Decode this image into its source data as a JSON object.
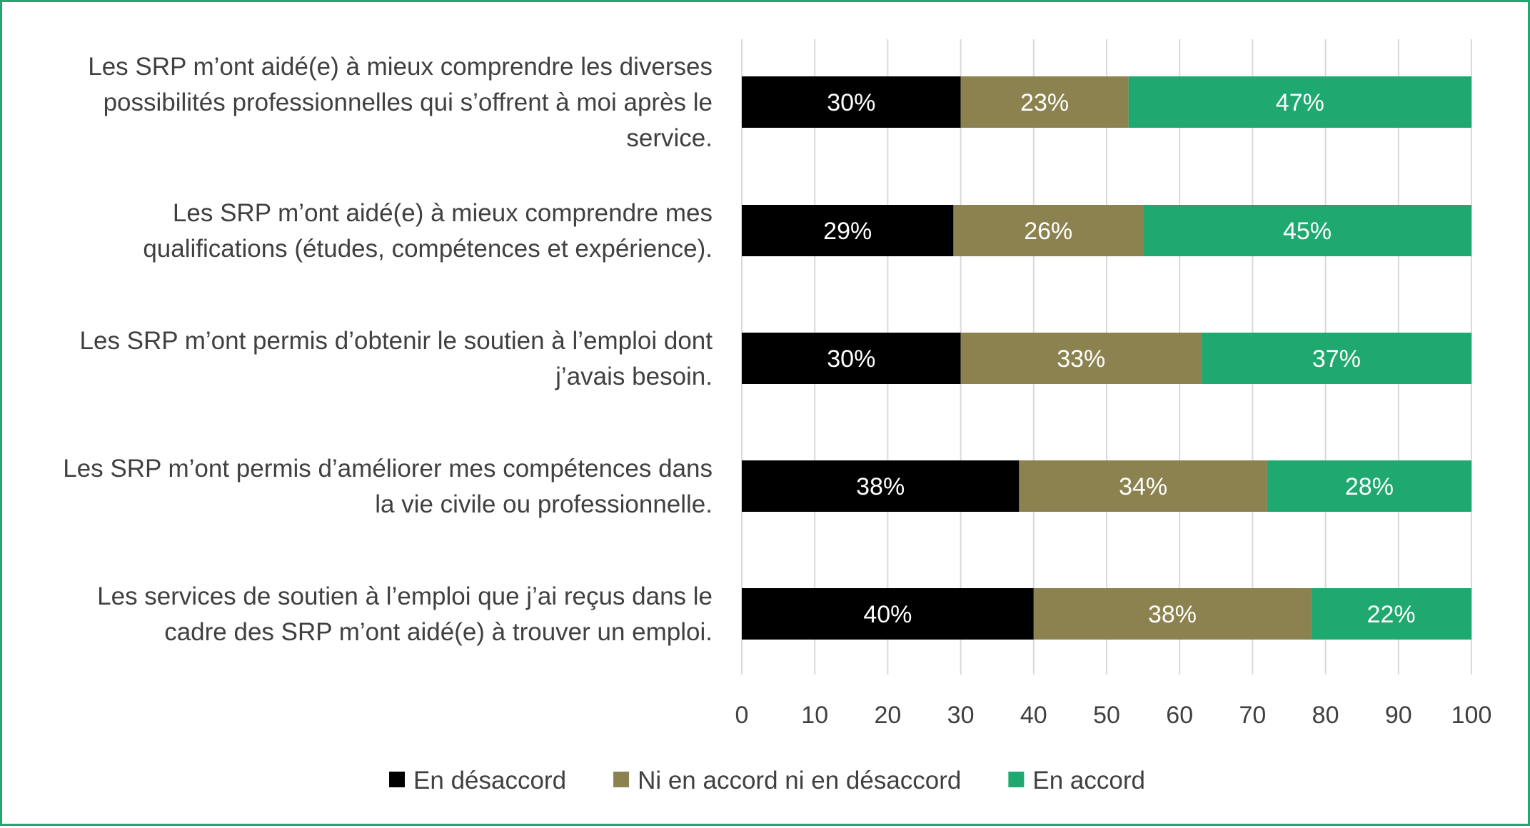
{
  "chart_data": {
    "type": "bar",
    "orientation": "horizontal",
    "stacked": true,
    "title": "",
    "xlabel": "",
    "ylabel": "",
    "xlim": [
      0,
      100
    ],
    "x_ticks": [
      "0",
      "10",
      "20",
      "30",
      "40",
      "50",
      "60",
      "70",
      "80",
      "90",
      "100"
    ],
    "grid": true,
    "legend_position": "bottom",
    "categories": [
      [
        "Les SRP m’ont aidé(e) à mieux comprendre les diverses",
        "possibilités professionnelles qui s’offrent à moi après le",
        "service."
      ],
      [
        "Les SRP m’ont aidé(e) à mieux comprendre mes",
        "qualifications (études, compétences et expérience)."
      ],
      [
        "Les SRP m’ont permis d’obtenir le soutien à l’emploi dont",
        "j’avais besoin."
      ],
      [
        "Les SRP m’ont permis d’améliorer mes compétences dans",
        "la vie civile ou professionnelle."
      ],
      [
        "Les services de soutien à l’emploi que j’ai reçus dans le",
        "cadre des SRP m’ont aidé(e) à trouver un emploi."
      ]
    ],
    "series": [
      {
        "name": "En désaccord",
        "color": "#000000",
        "values": [
          30,
          29,
          30,
          38,
          40
        ],
        "labels": [
          "30%",
          "29%",
          "30%",
          "38%",
          "40%"
        ]
      },
      {
        "name": "Ni en accord ni en désaccord",
        "color": "#8b8250",
        "values": [
          23,
          26,
          33,
          34,
          38
        ],
        "labels": [
          "23%",
          "26%",
          "33%",
          "34%",
          "38%"
        ]
      },
      {
        "name": "En accord",
        "color": "#1fa870",
        "values": [
          47,
          45,
          37,
          28,
          22
        ],
        "labels": [
          "47%",
          "45%",
          "37%",
          "28%",
          "22%"
        ]
      }
    ]
  },
  "colors": {
    "frame_border": "#1fa870",
    "gridline": "#d9d9d9",
    "text": "#404040"
  }
}
